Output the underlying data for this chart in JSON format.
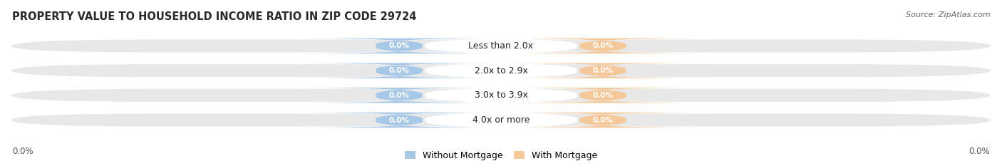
{
  "title": "PROPERTY VALUE TO HOUSEHOLD INCOME RATIO IN ZIP CODE 29724",
  "source": "Source: ZipAtlas.com",
  "categories": [
    "Less than 2.0x",
    "2.0x to 2.9x",
    "3.0x to 3.9x",
    "4.0x or more"
  ],
  "without_mortgage": [
    0.0,
    0.0,
    0.0,
    0.0
  ],
  "with_mortgage": [
    0.0,
    0.0,
    0.0,
    0.0
  ],
  "without_mortgage_color": "#a8c8e8",
  "with_mortgage_color": "#f5c89a",
  "bar_bg_color": "#e8e8e8",
  "bar_bg_color2": "#f0f0f0",
  "center_label_color": "#222222",
  "title_fontsize": 10.5,
  "source_fontsize": 8,
  "bar_height": 0.62,
  "figsize": [
    14.06,
    2.33
  ],
  "dpi": 100,
  "legend_labels": [
    "Without Mortgage",
    "With Mortgage"
  ],
  "axis_label_left": "0.0%",
  "axis_label_right": "0.0%"
}
